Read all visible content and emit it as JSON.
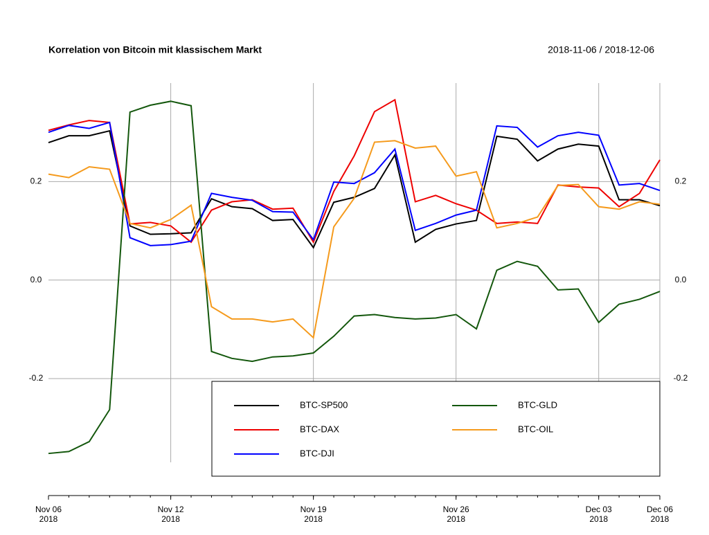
{
  "chart_data": {
    "type": "line",
    "title": "Korrelation von Bitcoin mit klassischem Markt",
    "subtitle": "2018-11-06 / 2018-12-06",
    "x": [
      "2018-11-06",
      "2018-11-07",
      "2018-11-08",
      "2018-11-09",
      "2018-11-10",
      "2018-11-11",
      "2018-11-12",
      "2018-11-13",
      "2018-11-14",
      "2018-11-15",
      "2018-11-16",
      "2018-11-17",
      "2018-11-18",
      "2018-11-19",
      "2018-11-20",
      "2018-11-21",
      "2018-11-22",
      "2018-11-23",
      "2018-11-24",
      "2018-11-25",
      "2018-11-26",
      "2018-11-27",
      "2018-11-28",
      "2018-11-29",
      "2018-11-30",
      "2018-12-01",
      "2018-12-02",
      "2018-12-03",
      "2018-12-04",
      "2018-12-05",
      "2018-12-06"
    ],
    "series": [
      {
        "name": "BTC-SP500",
        "color": "#000000",
        "values": [
          0.279,
          0.293,
          0.293,
          0.303,
          0.11,
          0.093,
          0.094,
          0.096,
          0.165,
          0.149,
          0.145,
          0.121,
          0.123,
          0.066,
          0.158,
          0.168,
          0.186,
          0.254,
          0.077,
          0.103,
          0.114,
          0.121,
          0.292,
          0.286,
          0.242,
          0.266,
          0.276,
          0.272,
          0.163,
          0.163,
          0.151
        ]
      },
      {
        "name": "BTC-DAX",
        "color": "#ee0000",
        "values": [
          0.304,
          0.315,
          0.324,
          0.32,
          0.114,
          0.117,
          0.11,
          0.077,
          0.142,
          0.159,
          0.163,
          0.144,
          0.146,
          0.077,
          0.18,
          0.252,
          0.342,
          0.366,
          0.159,
          0.172,
          0.155,
          0.142,
          0.115,
          0.118,
          0.115,
          0.193,
          0.189,
          0.187,
          0.149,
          0.176,
          0.244
        ]
      },
      {
        "name": "BTC-DJI",
        "color": "#0000ff",
        "values": [
          0.3,
          0.314,
          0.308,
          0.32,
          0.086,
          0.07,
          0.072,
          0.079,
          0.176,
          0.168,
          0.162,
          0.139,
          0.138,
          0.082,
          0.199,
          0.196,
          0.218,
          0.266,
          0.101,
          0.115,
          0.132,
          0.142,
          0.313,
          0.31,
          0.27,
          0.293,
          0.3,
          0.294,
          0.193,
          0.196,
          0.182
        ]
      },
      {
        "name": "BTC-GLD",
        "color": "#13570c",
        "values": [
          -0.352,
          -0.348,
          -0.328,
          -0.263,
          0.341,
          0.355,
          0.363,
          0.354,
          -0.145,
          -0.159,
          -0.165,
          -0.156,
          -0.154,
          -0.148,
          -0.114,
          -0.073,
          -0.07,
          -0.076,
          -0.079,
          -0.077,
          -0.07,
          -0.099,
          0.02,
          0.038,
          0.028,
          -0.02,
          -0.018,
          -0.086,
          -0.049,
          -0.039,
          -0.023
        ]
      },
      {
        "name": "BTC-OIL",
        "color": "#f59a1c",
        "values": [
          0.215,
          0.208,
          0.23,
          0.225,
          0.115,
          0.106,
          0.123,
          0.152,
          -0.054,
          -0.079,
          -0.079,
          -0.085,
          -0.079,
          -0.117,
          0.108,
          0.166,
          0.28,
          0.283,
          0.268,
          0.272,
          0.211,
          0.22,
          0.106,
          0.115,
          0.128,
          0.192,
          0.194,
          0.149,
          0.144,
          0.159,
          0.154
        ]
      }
    ],
    "xlim": [
      "2018-11-06",
      "2018-12-06"
    ],
    "xticks": [
      {
        "value": "2018-11-06",
        "label": [
          "Nov 06",
          "2018"
        ]
      },
      {
        "value": "2018-11-12",
        "label": [
          "Nov 12",
          "2018"
        ]
      },
      {
        "value": "2018-11-19",
        "label": [
          "Nov 19",
          "2018"
        ]
      },
      {
        "value": "2018-11-26",
        "label": [
          "Nov 26",
          "2018"
        ]
      },
      {
        "value": "2018-12-03",
        "label": [
          "Dec 03",
          "2018"
        ]
      },
      {
        "value": "2018-12-06",
        "label": [
          "Dec 06",
          "2018"
        ]
      }
    ],
    "ylim": [
      -0.37,
      0.4
    ],
    "yticks": [
      -0.2,
      {
        "value": 0,
        "label": "0.0"
      },
      0.2
    ],
    "grid": true,
    "legend": "bottom-right"
  }
}
